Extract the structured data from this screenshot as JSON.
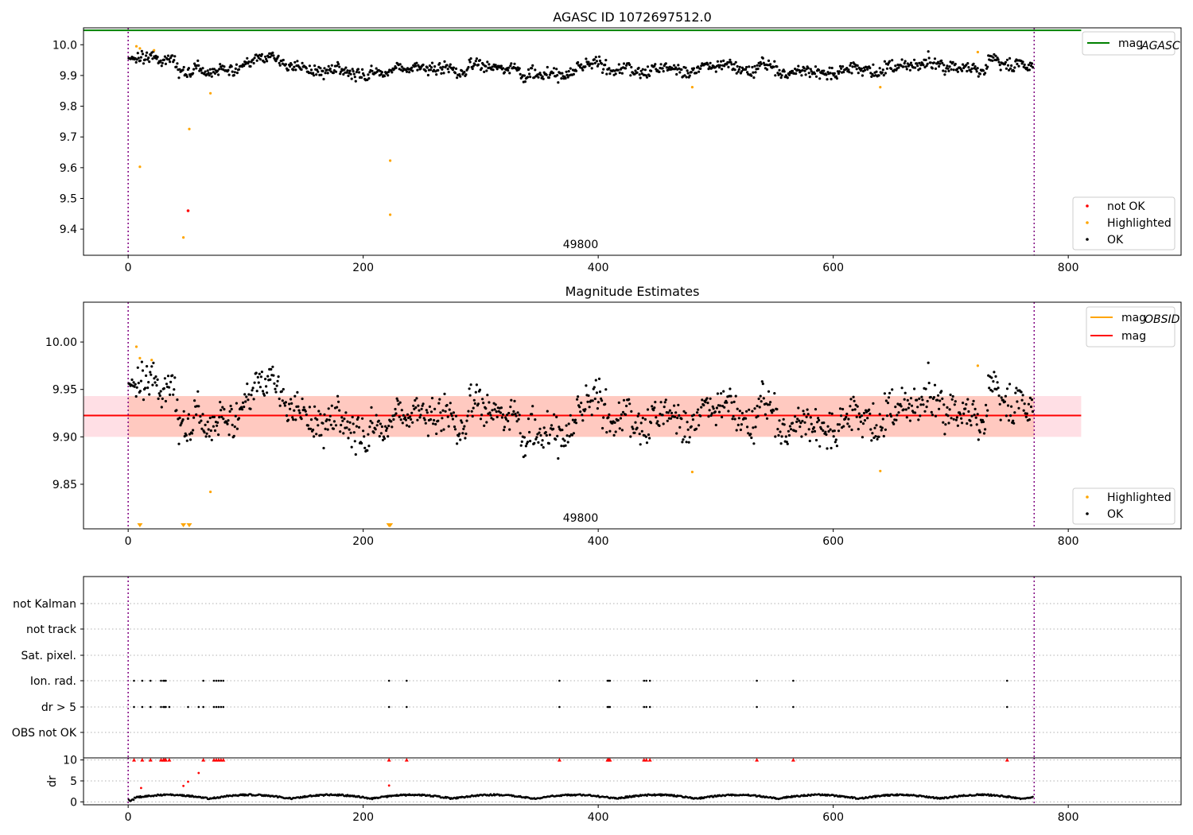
{
  "chart_data": [
    {
      "type": "scatter",
      "title": "AGASC ID 1072697512.0",
      "annotation": "49800",
      "xlim": [
        -38,
        896
      ],
      "ylim": [
        9.315,
        10.055
      ],
      "xticks": [
        "0",
        "200",
        "400",
        "600",
        "800"
      ],
      "yticks": [
        "9.4",
        "9.5",
        "9.6",
        "9.7",
        "9.8",
        "9.9",
        "10.0"
      ],
      "ytick_values": [
        9.4,
        9.5,
        9.6,
        9.7,
        9.8,
        9.9,
        10.0
      ],
      "vlines": [
        0,
        771
      ],
      "lines": [
        {
          "name": "mag",
          "subscript": "AGASC",
          "y": 10.047,
          "x_range": [
            -38,
            811
          ],
          "color": "#008000"
        }
      ],
      "series": [
        {
          "name": "not OK",
          "color": "#ff0000",
          "x": [
            51
          ],
          "y": [
            9.46
          ]
        },
        {
          "name": "Highlighted",
          "color": "#ffa500",
          "x": [
            7,
            10,
            22,
            10,
            70,
            52,
            223,
            47,
            223,
            480,
            640,
            723
          ],
          "y": [
            9.995,
            9.988,
            9.982,
            9.603,
            9.842,
            9.726,
            9.623,
            9.373,
            9.447,
            9.862,
            9.862,
            9.976
          ]
        },
        {
          "name": "OK",
          "color": "#000000",
          "x": [],
          "y": []
        }
      ],
      "legend": [
        {
          "label": "mag",
          "subscript": "AGASC",
          "kind": "line",
          "color": "#008000",
          "position": "top-right"
        },
        {
          "label": "not OK",
          "kind": "marker",
          "color": "#ff0000",
          "position": "bottom-right"
        },
        {
          "label": "Highlighted",
          "kind": "marker",
          "color": "#ffa500",
          "position": "bottom-right"
        },
        {
          "label": "OK",
          "kind": "marker",
          "color": "#000000",
          "position": "bottom-right"
        }
      ]
    },
    {
      "type": "scatter",
      "title": "Magnitude Estimates",
      "annotation": "49800",
      "xlim": [
        -38,
        896
      ],
      "ylim": [
        9.803,
        10.042
      ],
      "xticks": [
        "0",
        "200",
        "400",
        "600",
        "800"
      ],
      "yticks": [
        "9.85",
        "9.90",
        "9.95",
        "10.00"
      ],
      "ytick_values": [
        9.85,
        9.9,
        9.95,
        10.0
      ],
      "vlines": [
        0,
        771
      ],
      "bands": [
        {
          "y0": 9.9,
          "y1": 9.943,
          "x_range": [
            -38,
            811
          ],
          "color": "#ffc0cb",
          "opacity": 0.5
        },
        {
          "y0": 9.9,
          "y1": 9.943,
          "x_range": [
            0,
            771
          ],
          "color": "#ffa07a",
          "opacity": 0.35
        }
      ],
      "lines": [
        {
          "name": "mag",
          "subscript": "OBSID",
          "y": 9.9225,
          "x_range": [
            0,
            771
          ],
          "color": "#ffa500"
        },
        {
          "name": "mag",
          "y": 9.9225,
          "x_range": [
            -38,
            811
          ],
          "color": "#ff0000"
        }
      ],
      "series": [
        {
          "name": "Highlighted",
          "color": "#ffa500",
          "x": [
            7,
            10,
            20,
            70,
            480,
            640,
            723
          ],
          "y": [
            9.995,
            9.983,
            9.981,
            9.842,
            9.863,
            9.864,
            9.975
          ]
        },
        {
          "name": "OK",
          "color": "#000000",
          "x": [],
          "y": []
        }
      ],
      "clipped_markers": {
        "color": "#ffa500",
        "x": [
          10,
          47,
          52,
          222,
          223
        ]
      },
      "legend": [
        {
          "label": "mag",
          "subscript": "OBSID",
          "kind": "line",
          "color": "#ffa500",
          "position": "top-right"
        },
        {
          "label": "mag",
          "kind": "line",
          "color": "#ff0000",
          "position": "top-right"
        },
        {
          "label": "Highlighted",
          "kind": "marker",
          "color": "#ffa500",
          "position": "bottom-right"
        },
        {
          "label": "OK",
          "kind": "marker",
          "color": "#000000",
          "position": "bottom-right"
        }
      ]
    },
    {
      "type": "scatter",
      "title": "",
      "xlim": [
        -38,
        896
      ],
      "categories": [
        "not Kalman",
        "not track",
        "Sat. pixel.",
        "Ion. rad.",
        "dr > 5",
        "OBS not OK"
      ],
      "vlines": [
        0,
        771
      ],
      "flags": {
        "Ion. rad.": [
          5,
          12,
          19,
          28,
          30,
          31,
          32,
          64,
          73,
          75,
          77,
          79,
          81,
          222,
          237,
          367,
          408,
          409,
          410,
          439,
          441,
          444,
          535,
          566,
          748
        ],
        "dr > 5": [
          5,
          12,
          19,
          28,
          30,
          31,
          32,
          35,
          51,
          60,
          64,
          73,
          75,
          77,
          79,
          81,
          222,
          237,
          367,
          408,
          409,
          410,
          439,
          441,
          444,
          535,
          566,
          748
        ]
      }
    },
    {
      "type": "scatter",
      "title": "",
      "ylabel": "dr",
      "xlim": [
        -38,
        896
      ],
      "ylim": [
        -0.7,
        10.5
      ],
      "xticks": [
        "0",
        "200",
        "400",
        "600",
        "800"
      ],
      "yticks": [
        "0",
        "5",
        "10"
      ],
      "ytick_values": [
        0,
        5,
        10
      ],
      "vlines": [
        0,
        771
      ],
      "clip_value": 10,
      "series": [
        {
          "name": "dr > 5",
          "color": "#ff0000",
          "x": [
            5,
            12,
            19,
            28,
            30,
            31,
            32,
            35,
            51,
            60,
            64,
            73,
            75,
            77,
            79,
            81,
            222,
            237,
            367,
            408,
            409,
            410,
            439,
            441,
            444,
            535,
            566,
            748
          ],
          "y": [
            10,
            10,
            10,
            10,
            10,
            10,
            10,
            10,
            4.8,
            6.9,
            10,
            10,
            10,
            10,
            10,
            10,
            10,
            10,
            10,
            10,
            10,
            10,
            10,
            10,
            10,
            10,
            10,
            10
          ]
        },
        {
          "name": "dr",
          "color": "#ff0000",
          "x": [
            11,
            47,
            222
          ],
          "y": [
            3.3,
            3.8,
            3.9
          ]
        },
        {
          "name": "OK",
          "color": "#000000",
          "x": [],
          "y": []
        }
      ]
    }
  ]
}
